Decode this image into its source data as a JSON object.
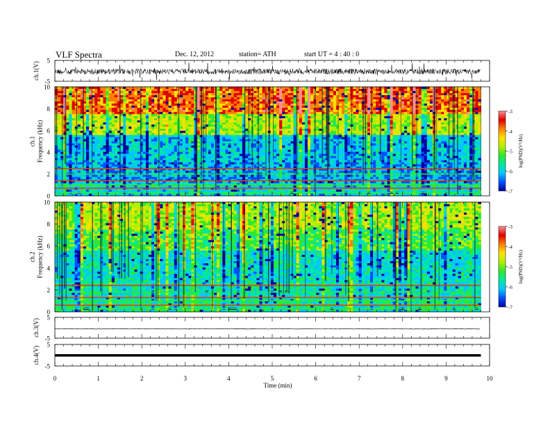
{
  "header": {
    "title": "VLF  Spectra",
    "date": "Dec. 12, 2012",
    "station": "station= ATH",
    "start": "start  UT  =   4  : 40 : 0"
  },
  "chart_data": [
    {
      "type": "line",
      "name": "ch1-waveform",
      "ylabel": "ch.1(V)",
      "ylim": [
        -5,
        5
      ],
      "yticks": [
        "5",
        "-5"
      ],
      "xlim": [
        0,
        10
      ]
    },
    {
      "type": "heatmap",
      "name": "ch1-spectrogram",
      "ylabel": "ch.1\nFrequency  (kHz)",
      "ylim": [
        0,
        10
      ],
      "yticks": [
        "0",
        "2",
        "4",
        "6",
        "8",
        "10"
      ],
      "xlim": [
        0,
        9.8
      ],
      "colorbar": {
        "label": "log(PSD)(V²/Hz)",
        "range": [
          -7,
          -3
        ],
        "ticks": [
          "-3",
          "-4",
          "-5",
          "-6",
          "-7"
        ]
      }
    },
    {
      "type": "heatmap",
      "name": "ch2-spectrogram",
      "ylabel": "ch.2\nFrequency  (kHz)",
      "ylim": [
        0,
        10
      ],
      "yticks": [
        "0",
        "2",
        "4",
        "6",
        "8",
        "10"
      ],
      "xlim": [
        0,
        9.8
      ],
      "colorbar": {
        "label": "log(PSD)(V²/Hz)",
        "range": [
          -7,
          -3
        ],
        "ticks": [
          "-3",
          "-4",
          "-5",
          "-6",
          "-7"
        ]
      }
    },
    {
      "type": "line",
      "name": "ch3-waveform",
      "ylabel": "ch.3(V)",
      "ylim": [
        -5,
        5
      ],
      "yticks": [
        "5",
        "-5"
      ],
      "xlim": [
        0,
        10
      ]
    },
    {
      "type": "line",
      "name": "ch4-waveform",
      "ylabel": "ch.4(V)",
      "ylim": [
        -5,
        5
      ],
      "yticks": [
        "5",
        "-5"
      ],
      "xlim": [
        0,
        10
      ]
    }
  ],
  "xaxis": {
    "label": "Time  (min)",
    "ticks": [
      "0",
      "1",
      "2",
      "3",
      "4",
      "5",
      "6",
      "7",
      "8",
      "9",
      "10"
    ],
    "range": [
      0,
      10
    ]
  },
  "colors": {
    "scale": [
      "#0000a0",
      "#0050ff",
      "#00c8ff",
      "#00e8a0",
      "#30e830",
      "#b0f000",
      "#ffe000",
      "#ff8000",
      "#e00000",
      "#ff9090"
    ]
  }
}
